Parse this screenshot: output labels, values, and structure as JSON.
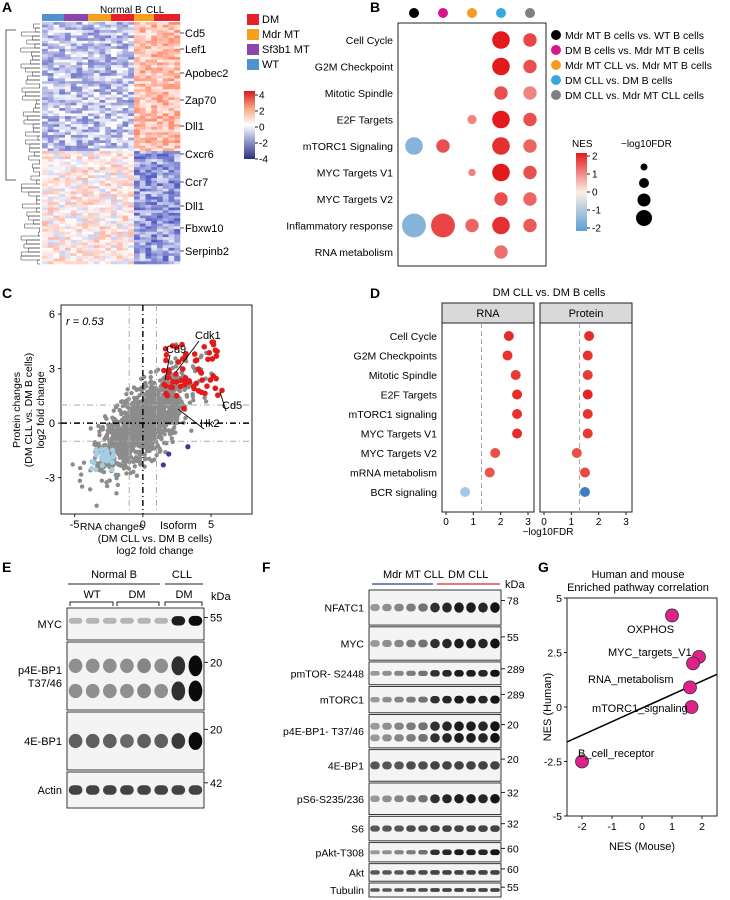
{
  "panels": {
    "A": "A",
    "B": "B",
    "C": "C",
    "D": "D",
    "E": "E",
    "F": "F",
    "G": "G"
  },
  "panelA": {
    "group_labels": [
      "Normal B",
      "CLL"
    ],
    "legend": [
      {
        "label": "DM",
        "color": "#e8202a"
      },
      {
        "label": "Mdr MT",
        "color": "#f5a11e"
      },
      {
        "label": "Sf3b1 MT",
        "color": "#8e44ad"
      },
      {
        "label": "WT",
        "color": "#4f92cf"
      }
    ],
    "genes": [
      "Cd5",
      "Lef1",
      "Apobec2",
      "Zap70",
      "Dll1",
      "Cxcr6",
      "Ccr7",
      "Dll1",
      "Fbxw10",
      "Serpinb2"
    ],
    "colorbar_ticks": [
      "4",
      "2",
      "0",
      "-2",
      "-4"
    ]
  },
  "panelB": {
    "pathways": [
      "Cell Cycle",
      "G2M Checkpoint",
      "Mitotic Spindle",
      "E2F Targets",
      "mTORC1 Signaling",
      "MYC Targets V1",
      "MYC Targets V2",
      "Inflammatory response",
      "RNA metabolism"
    ],
    "comparisons": [
      {
        "label": "Mdr MT B cells vs. WT B cells",
        "color": "#000000"
      },
      {
        "label": "DM B cells vs. Mdr MT B cells",
        "color": "#d6168b"
      },
      {
        "label": "Mdr MT CLL vs. Mdr MT B cells",
        "color": "#f39c1f"
      },
      {
        "label": "DM CLL vs. DM B cells",
        "color": "#39a7de"
      },
      {
        "label": "DM CLL vs. Mdr MT CLL cells",
        "color": "#808080"
      }
    ],
    "nes_label": "NES",
    "nes_ticks": [
      "2",
      "1",
      "0",
      "-1",
      "-2"
    ],
    "fdr_label": "−log10FDR"
  },
  "panelC": {
    "r_label": "r = 0.53",
    "ylabel_lines": [
      "Protein changes",
      "(DM CLL vs. DM B cells)",
      "log2 fold change"
    ],
    "xlabel_lines": [
      "RNA  changes",
      "(DM CLL vs. DM B cells)",
      "log2 fold change"
    ],
    "xticks": [
      "-5",
      "0",
      "5"
    ],
    "yticks": [
      "6",
      "3",
      "0",
      "-3"
    ],
    "genes": [
      "Cdk1",
      "Cd9",
      "Cd5",
      "Hk2"
    ],
    "isoform_label": "Isoform"
  },
  "panelD": {
    "title": "DM CLL vs. DM B cells",
    "facets": [
      "RNA",
      "Protein"
    ],
    "xlabel": "−log10FDR",
    "xticks": [
      "0",
      "1",
      "2",
      "3"
    ],
    "pathways": [
      "Cell Cycle",
      "G2M Checkpoints",
      "Mitotic Spindle",
      "E2F Targets",
      "mTORC1 signaling",
      "MYC Targets V1",
      "MYC Targets V2",
      "mRNA metabolism",
      "BCR signaling"
    ]
  },
  "panelE": {
    "groups": [
      "Normal B",
      "CLL"
    ],
    "lanes": [
      "WT",
      "DM",
      "DM"
    ],
    "kda": "kDa",
    "blots": [
      {
        "label": "MYC",
        "kda": "55"
      },
      {
        "label": "p4E-BP1 T37/46",
        "kda": "20"
      },
      {
        "label": "4E-BP1",
        "kda": "20"
      },
      {
        "label": "Actin",
        "kda": "42"
      }
    ]
  },
  "panelF": {
    "groups": [
      "Mdr MT CLL",
      "DM CLL"
    ],
    "kda": "kDa",
    "blots": [
      {
        "label": "NFATC1",
        "kda": "78"
      },
      {
        "label": "MYC",
        "kda": "55"
      },
      {
        "label": "pmTOR- S2448",
        "kda": "289"
      },
      {
        "label": "mTORC1",
        "kda": "289"
      },
      {
        "label": "p4E-BP1- T37/46",
        "kda": "20"
      },
      {
        "label": "4E-BP1",
        "kda": "20"
      },
      {
        "label": "pS6-S235/236",
        "kda": "32"
      },
      {
        "label": "S6",
        "kda": "32"
      },
      {
        "label": "pAkt-T308",
        "kda": "60"
      },
      {
        "label": "Akt",
        "kda": "60"
      },
      {
        "label": "Tubulin",
        "kda": "55"
      }
    ]
  },
  "chart_data": [
    {
      "type": "heatmap",
      "panel": "A",
      "colorbar_range": [
        -4,
        4
      ],
      "groups": [
        "Normal B",
        "CLL"
      ]
    },
    {
      "type": "scatter",
      "panel": "B",
      "rows": [
        "Cell Cycle",
        "G2M Checkpoint",
        "Mitotic Spindle",
        "E2F Targets",
        "mTORC1 Signaling",
        "MYC Targets V1",
        "MYC Targets V2",
        "Inflammatory response",
        "RNA metabolism"
      ],
      "points": [
        {
          "row": 0,
          "col": 3,
          "nes": 2.0,
          "size": 3
        },
        {
          "row": 0,
          "col": 4,
          "nes": 1.6,
          "size": 2
        },
        {
          "row": 1,
          "col": 3,
          "nes": 2.0,
          "size": 3
        },
        {
          "row": 1,
          "col": 4,
          "nes": 1.5,
          "size": 2
        },
        {
          "row": 2,
          "col": 3,
          "nes": 1.5,
          "size": 2
        },
        {
          "row": 2,
          "col": 4,
          "nes": 1.0,
          "size": 2
        },
        {
          "row": 3,
          "col": 2,
          "nes": 1.0,
          "size": 1
        },
        {
          "row": 3,
          "col": 3,
          "nes": 2.0,
          "size": 3
        },
        {
          "row": 3,
          "col": 4,
          "nes": 1.5,
          "size": 2
        },
        {
          "row": 4,
          "col": 0,
          "nes": -1.5,
          "size": 3
        },
        {
          "row": 4,
          "col": 1,
          "nes": 1.5,
          "size": 2
        },
        {
          "row": 4,
          "col": 3,
          "nes": 1.8,
          "size": 3
        },
        {
          "row": 4,
          "col": 4,
          "nes": 1.3,
          "size": 2
        },
        {
          "row": 5,
          "col": 2,
          "nes": 1.0,
          "size": 0.6
        },
        {
          "row": 5,
          "col": 3,
          "nes": 2.0,
          "size": 3
        },
        {
          "row": 5,
          "col": 4,
          "nes": 1.5,
          "size": 2
        },
        {
          "row": 6,
          "col": 3,
          "nes": 1.5,
          "size": 2
        },
        {
          "row": 6,
          "col": 4,
          "nes": 1.3,
          "size": 2
        },
        {
          "row": 7,
          "col": 0,
          "nes": -1.5,
          "size": 4.5
        },
        {
          "row": 7,
          "col": 1,
          "nes": 1.6,
          "size": 4.5
        },
        {
          "row": 7,
          "col": 2,
          "nes": 1.3,
          "size": 2
        },
        {
          "row": 7,
          "col": 3,
          "nes": 1.8,
          "size": 3
        },
        {
          "row": 7,
          "col": 4,
          "nes": 1.4,
          "size": 2
        },
        {
          "row": 8,
          "col": 3,
          "nes": 1.2,
          "size": 2
        }
      ],
      "nes_range": [
        -2,
        2
      ]
    },
    {
      "type": "scatter",
      "panel": "C",
      "xlim": [
        -6,
        8
      ],
      "ylim": [
        -5,
        6.5
      ],
      "r": 0.53,
      "highlighted": [
        {
          "gene": "Cdk1",
          "x": 4.5,
          "y": 4.2
        },
        {
          "gene": "Cd9",
          "x": 3.8,
          "y": 3.8
        },
        {
          "gene": "Cd5",
          "x": 5.8,
          "y": 1.8
        },
        {
          "gene": "Hk2",
          "x": 3.0,
          "y": 0.8
        }
      ]
    },
    {
      "type": "scatter",
      "panel": "D",
      "xlim": [
        0,
        3
      ],
      "threshold": 1.3,
      "categories": [
        "Cell Cycle",
        "G2M Checkpoints",
        "Mitotic Spindle",
        "E2F Targets",
        "mTORC1 signaling",
        "MYC Targets V1",
        "MYC Targets V2",
        "mRNA metabolism",
        "BCR signaling"
      ],
      "series": [
        {
          "name": "RNA",
          "values": [
            2.3,
            2.25,
            2.55,
            2.6,
            2.6,
            2.6,
            1.8,
            1.6,
            0.7
          ]
        },
        {
          "name": "Protein",
          "values": [
            1.65,
            1.6,
            1.6,
            1.6,
            1.6,
            1.6,
            1.2,
            1.5,
            1.5
          ]
        }
      ],
      "nes": [
        [
          1.8,
          1.7,
          1.6,
          1.8,
          1.7,
          1.8,
          1.3,
          1.2,
          -1.5
        ],
        [
          1.8,
          1.7,
          1.6,
          1.9,
          1.7,
          1.6,
          1.3,
          1.4,
          -1.8
        ]
      ]
    },
    {
      "type": "scatter",
      "panel": "G",
      "title": "Human and mouse",
      "subtitle": "Enriched pathway correlation",
      "xlabel": "NES (Mouse)",
      "ylabel": "NES (Human)",
      "xlim": [
        -2.5,
        2.5
      ],
      "ylim": [
        -5,
        5
      ],
      "xticks": [
        "-2",
        "-1",
        "0",
        "1",
        "2"
      ],
      "yticks": [
        "5",
        "2.5",
        "0",
        "-2.5",
        "-5"
      ],
      "points": [
        {
          "x": 1.0,
          "y": 4.2,
          "label": "OXPHOS"
        },
        {
          "x": 1.9,
          "y": 2.3,
          "label": "MYC_targets_V1"
        },
        {
          "x": 1.7,
          "y": 2.0,
          "label": ""
        },
        {
          "x": 1.6,
          "y": 0.9,
          "label": "RNA_metabolism"
        },
        {
          "x": 1.65,
          "y": 0.0,
          "label": "mTORC1_signaling"
        },
        {
          "x": -2.0,
          "y": -2.5,
          "label": "B_cell_receptor"
        }
      ],
      "fit": {
        "x1": -2.5,
        "y1": -1.6,
        "x2": 2.5,
        "y2": 1.5
      }
    }
  ]
}
